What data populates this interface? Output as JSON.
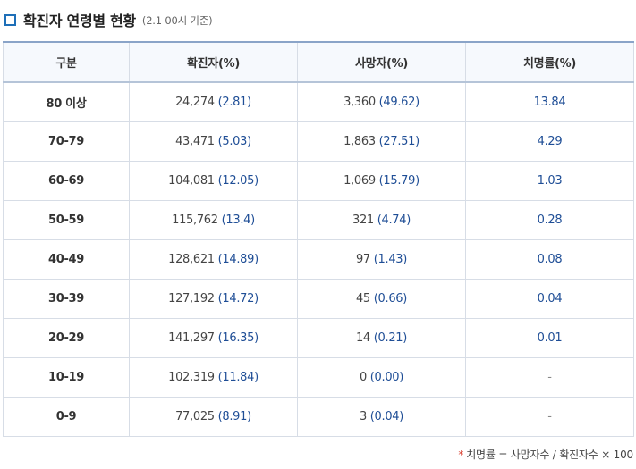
{
  "title": "확진자 연령별 현황",
  "title_note": "(2.1 00시 기준)",
  "colors": {
    "accent": "#1e6fb8",
    "value_blue": "#1f4e96",
    "header_bg": "#f6f9fd",
    "footnote_star": "#d93b2b"
  },
  "table": {
    "headers": [
      "구분",
      "확진자(%)",
      "사망자(%)",
      "치명률(%)"
    ],
    "rows": [
      {
        "group": "80 이상",
        "cases": "24,274",
        "cases_pct": "(2.81)",
        "deaths": "3,360",
        "deaths_pct": "(49.62)",
        "fatality": "13.84"
      },
      {
        "group": "70-79",
        "cases": "43,471",
        "cases_pct": "(5.03)",
        "deaths": "1,863",
        "deaths_pct": "(27.51)",
        "fatality": "4.29"
      },
      {
        "group": "60-69",
        "cases": "104,081",
        "cases_pct": "(12.05)",
        "deaths": "1,069",
        "deaths_pct": "(15.79)",
        "fatality": "1.03"
      },
      {
        "group": "50-59",
        "cases": "115,762",
        "cases_pct": "(13.4)",
        "deaths": "321",
        "deaths_pct": "(4.74)",
        "fatality": "0.28"
      },
      {
        "group": "40-49",
        "cases": "128,621",
        "cases_pct": "(14.89)",
        "deaths": "97",
        "deaths_pct": "(1.43)",
        "fatality": "0.08"
      },
      {
        "group": "30-39",
        "cases": "127,192",
        "cases_pct": "(14.72)",
        "deaths": "45",
        "deaths_pct": "(0.66)",
        "fatality": "0.04"
      },
      {
        "group": "20-29",
        "cases": "141,297",
        "cases_pct": "(16.35)",
        "deaths": "14",
        "deaths_pct": "(0.21)",
        "fatality": "0.01"
      },
      {
        "group": "10-19",
        "cases": "102,319",
        "cases_pct": "(11.84)",
        "deaths": "0",
        "deaths_pct": "(0.00)",
        "fatality": "-"
      },
      {
        "group": "0-9",
        "cases": "77,025",
        "cases_pct": "(8.91)",
        "deaths": "3",
        "deaths_pct": "(0.04)",
        "fatality": "-"
      }
    ]
  },
  "footnote": {
    "star": "*",
    "text": "치명률 = 사망자수 / 확진자수 × 100"
  }
}
